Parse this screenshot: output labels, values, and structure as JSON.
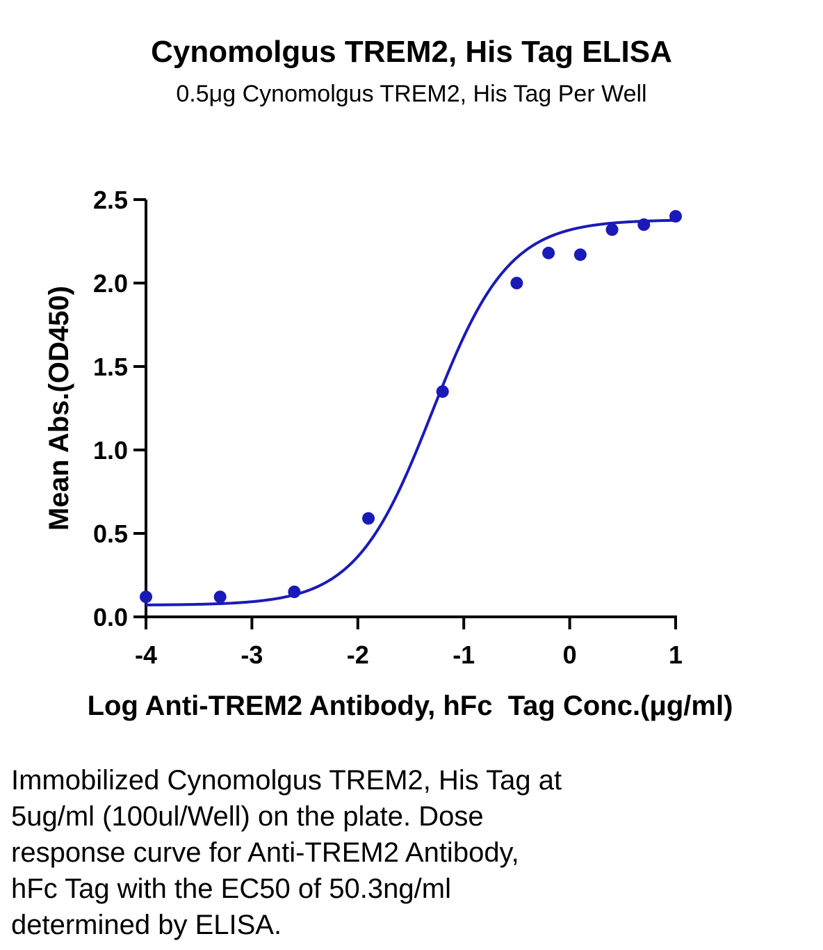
{
  "chart_data": {
    "type": "scatter",
    "title": "Cynomolgus TREM2, His Tag ELISA",
    "subtitle": "0.5μg Cynomolgus TREM2, His Tag Per Well",
    "xlabel": "Log Anti-TREM2 Antibody, hFc  Tag Conc.(μg/ml)",
    "ylabel": "Mean Abs.(OD450)",
    "xlim": [
      -4,
      1
    ],
    "ylim": [
      0,
      2.5
    ],
    "xticks": [
      "-4",
      "-3",
      "-2",
      "-1",
      "0",
      "1"
    ],
    "yticks": [
      "0.0",
      "0.5",
      "1.0",
      "1.5",
      "2.0",
      "2.5"
    ],
    "grid": false,
    "color": "#1a1ab8",
    "series": [
      {
        "points": [
          {
            "x": -4.0,
            "y": 0.12
          },
          {
            "x": -3.3,
            "y": 0.12
          },
          {
            "x": -2.6,
            "y": 0.15
          },
          {
            "x": -1.9,
            "y": 0.59
          },
          {
            "x": -1.2,
            "y": 1.35
          },
          {
            "x": -0.5,
            "y": 2.0
          },
          {
            "x": -0.2,
            "y": 2.18
          },
          {
            "x": 0.1,
            "y": 2.17
          },
          {
            "x": 0.4,
            "y": 2.32
          },
          {
            "x": 0.7,
            "y": 2.35
          },
          {
            "x": 1.0,
            "y": 2.4
          }
        ],
        "fit": {
          "model": "4PL",
          "bottom": 0.07,
          "top": 2.38,
          "log_ec50": -1.3,
          "hill": 1.2
        }
      }
    ]
  },
  "caption": [
    "Immobilized Cynomolgus TREM2, His Tag at",
    "5ug/ml (100ul/Well) on the plate. Dose",
    "response curve for Anti-TREM2 Antibody,",
    "hFc Tag with the EC50 of 50.3ng/ml",
    "determined by ELISA."
  ]
}
